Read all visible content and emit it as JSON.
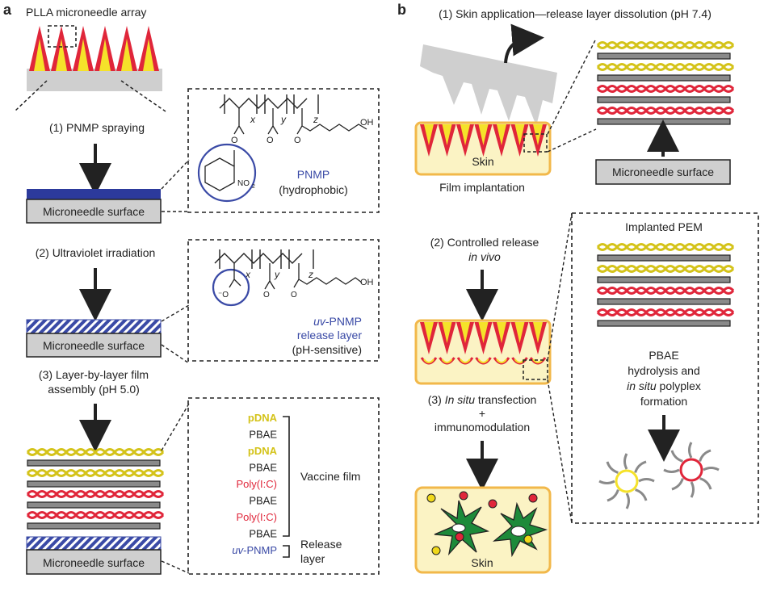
{
  "panel_a": {
    "label": "a",
    "array_title": "PLLA microneedle array",
    "step1": "(1) PNMP spraying",
    "step2": "(2) Ultraviolet irradiation",
    "step3_line1": "(3) Layer-by-layer film",
    "step3_line2": "assembly (pH 5.0)",
    "surface_label": "Microneedle surface",
    "pnmp_name": "PNMP",
    "pnmp_prop": "(hydrophobic)",
    "uvpnmp_prefix": "uv",
    "uvpnmp_name": "-PNMP",
    "release_layer": "release layer",
    "ph_sensitive": "(pH-sensitive)",
    "chem": {
      "x": "x",
      "y": "y",
      "z": "z",
      "oh": "OH",
      "no2": "NO",
      "no2_sub": "2",
      "o": "O",
      "om": "⁻O"
    },
    "film_layers": [
      "pDNA",
      "PBAE",
      "pDNA",
      "PBAE",
      "Poly(I:C)",
      "PBAE",
      "Poly(I:C)",
      "PBAE"
    ],
    "film_uv_prefix": "uv",
    "film_uv_name": "-PNMP",
    "vaccine_film": "Vaccine film",
    "release_word1": "Release",
    "release_word2": "layer"
  },
  "panel_b": {
    "label": "b",
    "step1": "(1) Skin application—release layer dissolution (pH 7.4)",
    "skin": "Skin",
    "film_implant": "Film implantation",
    "surface_label": "Microneedle surface",
    "step2_line1": "(2) Controlled release",
    "step2_line2": "in vivo",
    "step3_italic": "In situ",
    "step3_rest": " transfection",
    "plus": "+",
    "immuno": "immunomodulation",
    "skin2": "Skin",
    "implanted_pem": "Implanted PEM",
    "pbae": "PBAE",
    "hydrolysis": "hydrolysis and",
    "insitu_italic": "in situ",
    "polyplex": " polyplex",
    "formation": "formation"
  },
  "colors": {
    "pdna": "#d4c31a",
    "polyic": "#e0263a",
    "pnmp_blue": "#3a4aa6",
    "needle_red": "#e0263a",
    "needle_yellow": "#f5e22a",
    "surface_gray": "#cfcfcf",
    "skin_fill": "#fbf3c4",
    "skin_border": "#f2b84a",
    "cell_green": "#1d8a3a"
  }
}
